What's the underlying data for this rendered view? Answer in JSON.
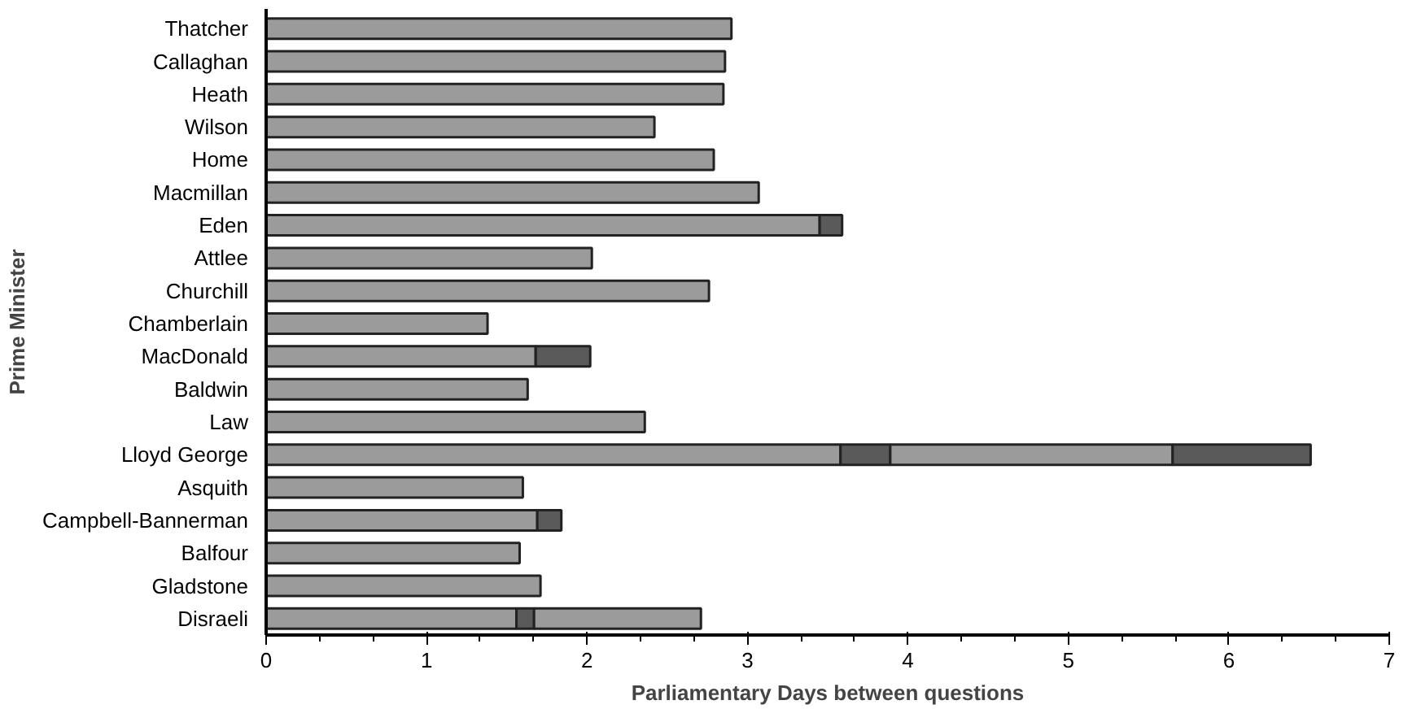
{
  "chart_data": {
    "type": "bar",
    "orientation": "horizontal",
    "stacked": true,
    "xlabel": "Parliamentary Days between questions",
    "ylabel": "Prime Minister",
    "categories": [
      "Thatcher",
      "Callaghan",
      "Heath",
      "Wilson",
      "Home",
      "Macmillan",
      "Eden",
      "Attlee",
      "Churchill",
      "Chamberlain",
      "MacDonald",
      "Baldwin",
      "Law",
      "Lloyd George",
      "Asquith",
      "Campbell-Bannerman",
      "Balfour",
      "Gladstone",
      "Disraeli"
    ],
    "series": [
      {
        "color": "#9b9b9b",
        "values": [
          2.9,
          2.86,
          2.85,
          2.42,
          2.79,
          3.07,
          3.45,
          2.03,
          2.76,
          1.38,
          1.68,
          1.63,
          2.36,
          3.58,
          1.6,
          1.69,
          1.58,
          1.71,
          1.56
        ]
      },
      {
        "color": "#5a5a5a",
        "values": [
          null,
          null,
          null,
          null,
          null,
          null,
          0.14,
          null,
          null,
          null,
          0.34,
          null,
          null,
          0.31,
          null,
          0.15,
          null,
          null,
          0.11
        ]
      },
      {
        "color": "#9b9b9b",
        "values": [
          null,
          null,
          null,
          null,
          null,
          null,
          null,
          null,
          null,
          null,
          null,
          null,
          null,
          1.76,
          null,
          null,
          null,
          null,
          1.04
        ]
      },
      {
        "color": "#5a5a5a",
        "values": [
          null,
          null,
          null,
          null,
          null,
          null,
          null,
          null,
          null,
          null,
          null,
          null,
          null,
          0.86,
          null,
          null,
          null,
          null,
          null
        ]
      }
    ],
    "xlim": [
      0,
      7
    ],
    "xticks": [
      0,
      1,
      2,
      3,
      4,
      5,
      6,
      7
    ],
    "grid": false
  }
}
